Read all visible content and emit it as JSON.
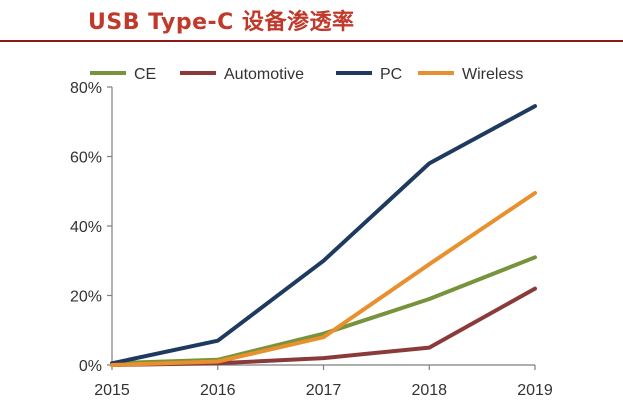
{
  "title": "USB Type-C 设备渗透率",
  "chart_data": {
    "type": "line",
    "title": "USB Type-C 设备渗透率",
    "xlabel": "",
    "ylabel": "",
    "x": [
      "2015",
      "2016",
      "2017",
      "2018",
      "2019"
    ],
    "ylim": [
      0,
      80
    ],
    "yticks": [
      "0%",
      "20%",
      "40%",
      "60%",
      "80%"
    ],
    "grid": false,
    "legend_position": "top",
    "series": [
      {
        "name": "CE",
        "color": "#77933c",
        "values": [
          0.5,
          1.5,
          9,
          19,
          31
        ]
      },
      {
        "name": "Automotive",
        "color": "#8b3a3a",
        "values": [
          0,
          0.5,
          2,
          5,
          22
        ]
      },
      {
        "name": "PC",
        "color": "#1f3a5f",
        "values": [
          0.5,
          7,
          30,
          58,
          74.5
        ]
      },
      {
        "name": "Wireless",
        "color": "#e8902e",
        "values": [
          0,
          1,
          8,
          29,
          49.5
        ]
      }
    ]
  }
}
